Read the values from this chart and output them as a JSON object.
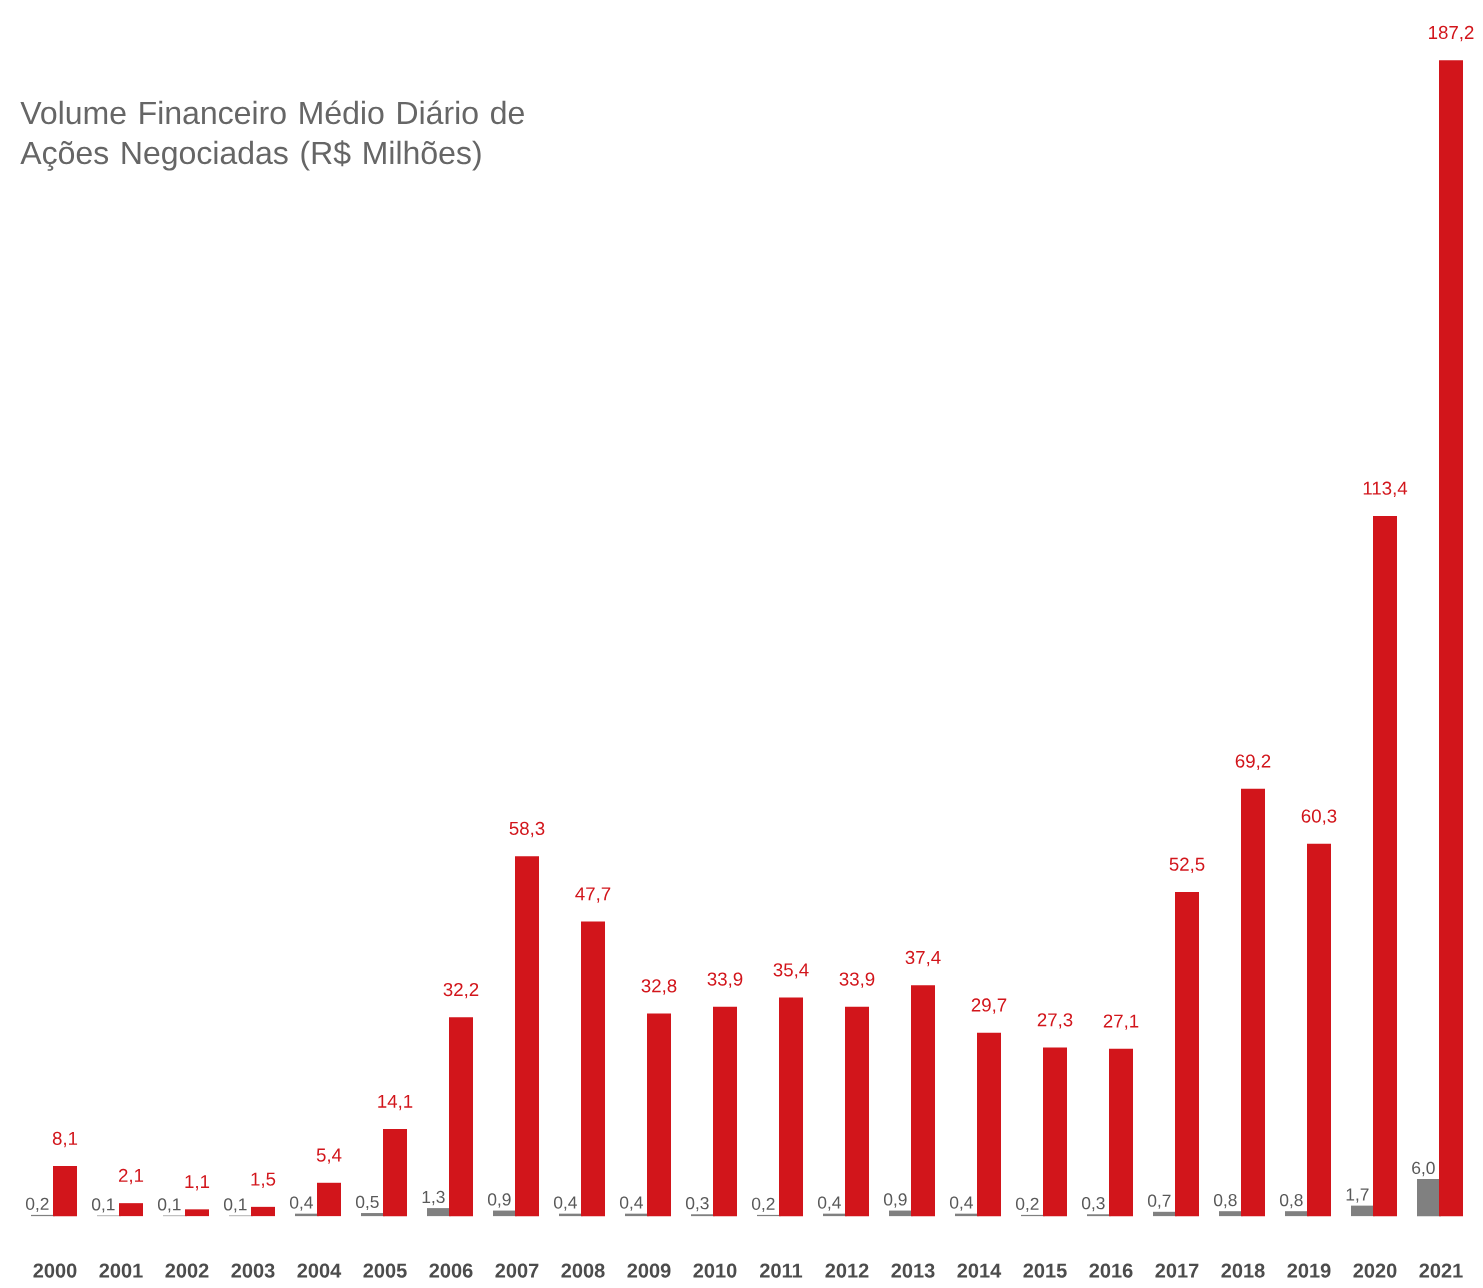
{
  "chart_data": {
    "type": "bar",
    "title": "Volume Financeiro Médio Diário de Ações Negociadas (R$ Milhões)",
    "categories": [
      "2000",
      "2001",
      "2002",
      "2003",
      "2004",
      "2005",
      "2006",
      "2007",
      "2008",
      "2009",
      "2010",
      "2011",
      "2012",
      "2013",
      "2014",
      "2015",
      "2016",
      "2017",
      "2018",
      "2019",
      "2020",
      "2021"
    ],
    "series": [
      {
        "color": "#808080",
        "values": [
          0.2,
          0.1,
          0.1,
          0.1,
          0.4,
          0.5,
          1.3,
          0.9,
          0.4,
          0.4,
          0.3,
          0.2,
          0.4,
          0.9,
          0.4,
          0.2,
          0.3,
          0.7,
          0.8,
          0.8,
          1.7,
          6.0
        ],
        "value_labels": [
          "0,2",
          "0,1",
          "0,1",
          "0,1",
          "0,4",
          "0,5",
          "1,3",
          "0,9",
          "0,4",
          "0,4",
          "0,3",
          "0,2",
          "0,4",
          "0,9",
          "0,4",
          "0,2",
          "0,3",
          "0,7",
          "0,8",
          "0,8",
          "1,7",
          "6,0"
        ]
      },
      {
        "color": "#d2151b",
        "values": [
          8.1,
          2.1,
          1.1,
          1.5,
          5.4,
          14.1,
          32.2,
          58.3,
          47.7,
          32.8,
          33.9,
          35.4,
          33.9,
          37.4,
          29.7,
          27.3,
          27.1,
          52.5,
          69.2,
          60.3,
          113.4,
          187.2
        ],
        "value_labels": [
          "8,1",
          "2,1",
          "1,1",
          "1,5",
          "5,4",
          "14,1",
          "32,2",
          "58,3",
          "47,7",
          "32,8",
          "33,9",
          "35,4",
          "33,9",
          "37,4",
          "29,7",
          "27,3",
          "27,1",
          "52,5",
          "69,2",
          "60,3",
          "113,4",
          "187,2"
        ]
      }
    ],
    "grid": false
  }
}
